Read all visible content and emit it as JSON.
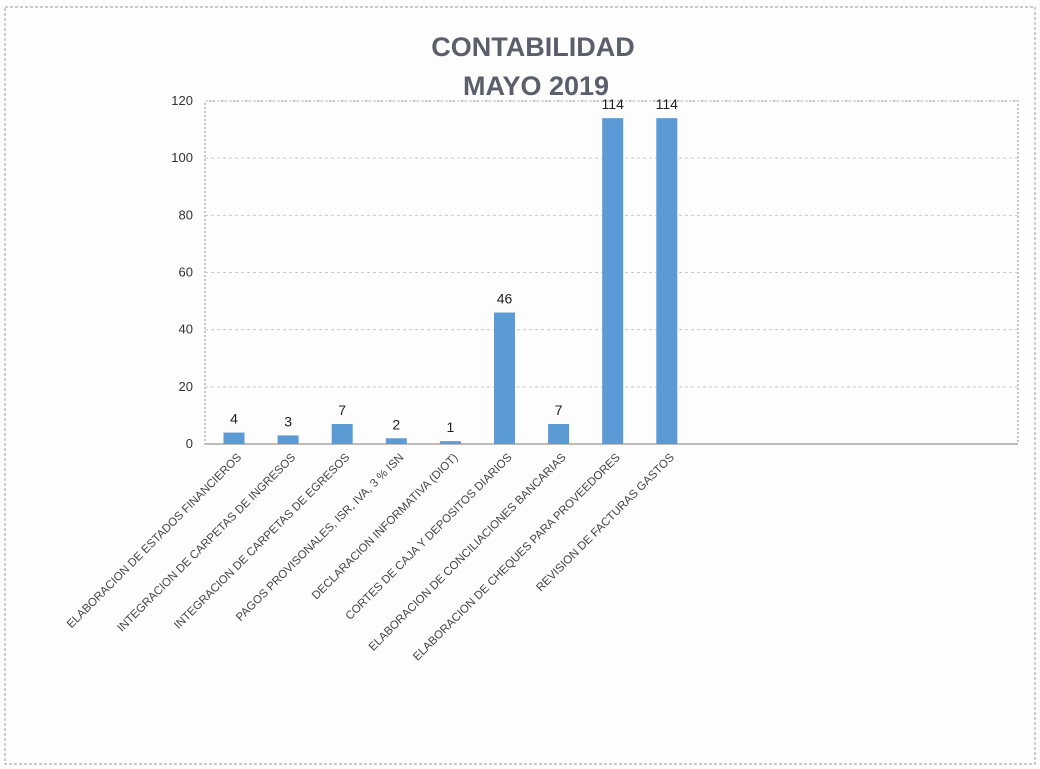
{
  "chart_data": {
    "type": "bar",
    "title": [
      "CONTABILIDAD",
      "MAYO  2019"
    ],
    "categories": [
      "ELABORACION DE ESTADOS FINANCIEROS",
      "INTEGRACION DE CARPETAS DE INGRESOS",
      "INTEGRACION DE CARPETAS DE EGRESOS",
      "PAGOS PROVISONALES, ISR, IVA, 3 % ISN",
      "DECLARACION INFORMATIVA (DIOT)",
      "CORTES DE CAJA Y DEPOSITOS DIARIOS",
      "ELABORACION DE CONCILIACIONES BANCARIAS",
      "ELABORACION DE CHEQUES PARA PROVEEDORES",
      "REVISION DE FACTURAS GASTOS"
    ],
    "values": [
      4,
      3,
      7,
      2,
      1,
      46,
      7,
      114,
      114
    ],
    "xlabel": "",
    "ylabel": "",
    "ylim": [
      0,
      120
    ],
    "yticks": [
      0,
      20,
      40,
      60,
      80,
      100,
      120
    ],
    "grid": true,
    "legend": "none",
    "bar_color": "#5b9bd5",
    "title_color": "#5a5f6b",
    "grid_color": "#c8c8c8"
  }
}
